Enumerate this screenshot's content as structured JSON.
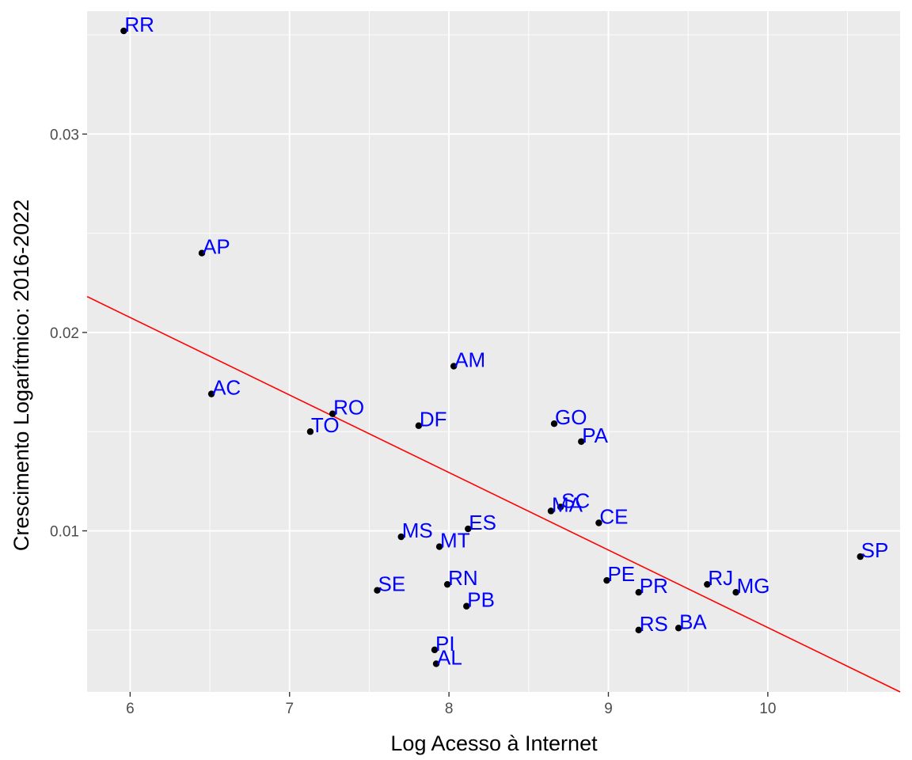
{
  "chart_data": {
    "type": "scatter",
    "title": "",
    "xlabel": "Log Acesso à Internet",
    "ylabel": "Crescimento Logarítmico: 2016-2022",
    "xlim": [
      5.73,
      10.83
    ],
    "ylim": [
      0.00188,
      0.0362
    ],
    "x_ticks": [
      6,
      7,
      8,
      9,
      10
    ],
    "x_tick_labels": [
      "6",
      "7",
      "8",
      "9",
      "10"
    ],
    "y_ticks": [
      0.01,
      0.02,
      0.03
    ],
    "y_tick_labels": [
      "0.01",
      "0.02",
      "0.03"
    ],
    "grid": true,
    "colors": {
      "panel": "#ebebeb",
      "grid": "#ffffff",
      "point": "#000000",
      "label": "#0000ff",
      "trend": "#ff0000"
    },
    "points": [
      {
        "label": "RR",
        "x": 5.96,
        "y": 0.0352
      },
      {
        "label": "AP",
        "x": 6.45,
        "y": 0.024
      },
      {
        "label": "AC",
        "x": 6.51,
        "y": 0.0169
      },
      {
        "label": "RO",
        "x": 7.27,
        "y": 0.0159
      },
      {
        "label": "TO",
        "x": 7.13,
        "y": 0.015
      },
      {
        "label": "DF",
        "x": 7.81,
        "y": 0.0153
      },
      {
        "label": "AM",
        "x": 8.03,
        "y": 0.0183
      },
      {
        "label": "GO",
        "x": 8.66,
        "y": 0.0154
      },
      {
        "label": "PA",
        "x": 8.83,
        "y": 0.0145
      },
      {
        "label": "MA",
        "x": 8.64,
        "y": 0.011
      },
      {
        "label": "SC",
        "x": 8.7,
        "y": 0.0112
      },
      {
        "label": "CE",
        "x": 8.94,
        "y": 0.0104
      },
      {
        "label": "MS",
        "x": 7.7,
        "y": 0.0097
      },
      {
        "label": "ES",
        "x": 8.12,
        "y": 0.0101
      },
      {
        "label": "MT",
        "x": 7.94,
        "y": 0.0092
      },
      {
        "label": "SE",
        "x": 7.55,
        "y": 0.007
      },
      {
        "label": "RN",
        "x": 7.99,
        "y": 0.0073
      },
      {
        "label": "PB",
        "x": 8.11,
        "y": 0.0062
      },
      {
        "label": "PI",
        "x": 7.91,
        "y": 0.004
      },
      {
        "label": "AL",
        "x": 7.92,
        "y": 0.0033
      },
      {
        "label": "PE",
        "x": 8.99,
        "y": 0.0075
      },
      {
        "label": "PR",
        "x": 9.19,
        "y": 0.0069
      },
      {
        "label": "RS",
        "x": 9.19,
        "y": 0.005
      },
      {
        "label": "BA",
        "x": 9.44,
        "y": 0.0051
      },
      {
        "label": "RJ",
        "x": 9.62,
        "y": 0.0073
      },
      {
        "label": "MG",
        "x": 9.8,
        "y": 0.0069
      },
      {
        "label": "SP",
        "x": 10.58,
        "y": 0.0087
      }
    ],
    "trend_line": {
      "x": [
        5.73,
        10.83
      ],
      "y": [
        0.02181,
        0.00188
      ]
    }
  }
}
